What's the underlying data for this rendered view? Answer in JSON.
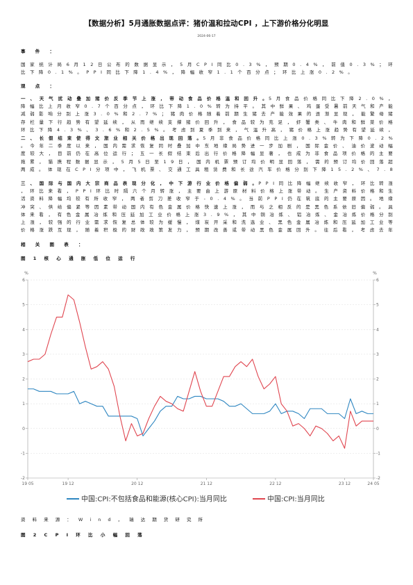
{
  "doc": {
    "title": "【数据分析】5月通胀数据点评：猪价温和拉动CPI ，上下游价格分化明显",
    "date": "2024-06-17",
    "event_heading": "事 件 ：",
    "event_text": "国 家 统 计 局 6 月 1 2 日 公 布 的 数 据 显 示 ， 5 月 C P I 同 比 0 . 3 % ， 预 期 0 . 4 % ， 前 值 0 . 3 % ； 环 比 下 降 0 . 1 % 。 P P I 同 比 下 降 1 . 4 % ， 降 幅 收 窄 1 . 1 个 百 分 点 ； 环 比 上 涨 0 . 2 % 。",
    "view_heading": "观 点 ：",
    "points": [
      {
        "head": "一 、 天 气 扰 动 叠 加 猪 价 反 季 节 上 涨 ， 带 动 食 品 价 格 温 和 回 升 。",
        "body": "5 月 食 品 价 格 同 比 下 降 2 . 0 % ， 降 幅 比 上 月 收 窄 0 . 7 个 百 分 点 ， 环 比 下 降 1 . 0 % 转 为 持 平 。 其 中 鲜 果 、 鸡 蛋 受 暑 前 天 气 和 产 能 减 弱 影 响 分 别 上 涨 3 . 0 % 和 2 . 7 % ； 猪 肉 价 格 随 着 前 期 生 猪 去 产 能 效 果 的 逐 渐 显 现 ， 能 繁 母 猪 存 栏 量 下 行 趋 势 有 望 延 续 ， 从 而 继 续 支 撑 猪 价 回 升 ， 食 品 较 为 充 足 ， 虾 蟹 类 、 牛 肉 和 鲜 菜 价 格 环 比 下 降 4 . 3 % 、 3 . 6 % 和 2 . 5 % 。 考 虑 到 夏 季 到 来 ， 气 温 升 高 ， 猪 价 格 上 涨 趋 势 有 望 延 续 ， 此 消 彼 长 下 整 体 食 品 项 价 格 同 比 增 速 大 概 率 低 位 运 行 ， 此 外 仍 需 注 意 天 气 因 素 的 扰 动 。"
      },
      {
        "head": "二 、 长 假 结 束 使 得 文 旅 业 相 关 价 格 出 现 回 落 。",
        "body": "5 月 非 食 品 价 格 同 比 上 涨 0 . 3 % 转 为 下 降 0 . 2 % 。 今 年 二 季 度 以 来 ， 国 内 需 求 恢 复 同 时 叠 加 中 东 地 缘 局 势 进 一 步 加 剧 ， 国 际 金 价 、 油 价 波 动 幅 度 较 大 ， 目 前 仍 在 高 位 运 行 ； 五 一 长 假 结 束 后 出 行 价 格 降 幅 显 著 ， 也 成 为 非 食 品 项 价 格 的 主 要 拖 累 ， 猫 携 程 数 据 显 示 ， 5 月 5 日 至 1 9 日 ， 国 内 机 票 预 订 均 价 明 显 回 落 ， 需 的 预 订 均 价 回 落 超 两 成 。 体 现 在 C P I 分 项 中 ， 飞 机 票 、 交 通 工 具 租 赁 费 和 长 途 汽 车 价 格 分 别 下 降 1 5 . 2 % 、 7 . 8 % 和 3 . 5 % ， 核 心 C P I 同 比 0 . 6 % 较 上 月 下 降 0 . 1 个 百 分 点 ， 说 明 内 需 不 足 的 问 题 依 旧 存 在 ， 旅 游 淡 季 到 来 使 得 居 民 消 费 热 情 进 一 步 回 落 ， 服 务 价 格 低 位 运 行 。"
      },
      {
        "head": "三 、 国 际 与 国 内 大 宗 商 品 表 现 分 化 ， 中 下 游 行 业 价 格 偏 弱 。",
        "body": "P P I 同 比 降 幅 继 续 收 窄 ， 环 比 转 涨 ， 环 比 来 看 ， P P I 环 比 时 隔 六 个 月 转 涨 ， 主 要 由 上 游 原 材 料 价 格 上 涨 带 动 。 生 产 资 料 价 格 和 生 活 资 料 降 幅 均 较 有 所 收 窄 ， 两 者 剪 刀 差 收 窄 于 - 0 . 4 % 。 当 前 P P I 仍 在 筑 底 的 主 要 原 因 。 地 缘 冲 突 、 供 给 偏 紧 等 因 素 带 动 国 内 有 色 金 属 价 格 快 速 上 涨 ， 而 与 之 相 反 的 是 黑 色 系 依 旧 偏 弱 。 具 体 来 看 ， 有 色 金 属 冶 炼 和 压 延 加 工 业 价 格 上 涨 3 . 9 % ， 其 中 铜 冶 炼 、 铝 冶 炼 、 金 冶 炼 价 格 分 别 上 涨 ， 较 强 的 行 业 需 求 恢 复 总 体 较 为 缓 慢 ， 煤 炭 开 采 和 洗 选 业 、 黑 色 金 属 冶 炼 和 压 延 加 工 业 等 价 格 涨 跌 互 现 ， 随 着 积 极 的 财 政 政 策 发 力 ， 预 期 改 善 或 带 动 黑 色 金 属 回 升 。 往 后 看 ， 考 虑 去 年 低 基 数 效 应 ， 二 季 度 P P I 同 比 有 望 回 到 正 增 长 状 态 的 时 点 还 将 主 要 取 决 于 国 内 地 产 市 场 走 向 及 各 项 稳 增 长 措 施 的 落 实 情 况 。 同 时 需 求 不 足 的 现 象 依 然 存 在 ， 中 下 游 行 业 或 难 受 成 本 压 力 。"
      }
    ],
    "related_heading": "相 关 图 表 ：",
    "fig1_title": "图   1   核 心 通 胀 低 位 运 行",
    "source": "资 料 来 源 ： W i n d ， 瑞 达 期 货 研 究 所",
    "fig2_title": "图   2   C P I 环 比 小 幅 回 落"
  },
  "colors": {
    "core_cpi": "#2e86c1",
    "cpi": "#e0454f",
    "grid": "#dcdcdc",
    "axis": "#999999"
  },
  "chart_data": {
    "type": "line",
    "ylabel_left": "%",
    "ylabel_right": "%",
    "ylim": [
      -2,
      6
    ],
    "yticks": [
      -2,
      -1,
      0,
      1,
      2,
      3,
      4,
      5,
      6
    ],
    "x_tick_labels": [
      "19 05",
      "19 12",
      "20 12",
      "21 12",
      "22 12",
      "23 12",
      "24 05"
    ],
    "x_tick_index": [
      0,
      7,
      19,
      31,
      43,
      55,
      60
    ],
    "series": [
      {
        "name": "中国:CPI:不包括食品和能源(核心CPI):当月同比",
        "color_key": "core_cpi",
        "values": [
          1.6,
          1.6,
          1.5,
          1.5,
          1.5,
          1.4,
          1.4,
          1.4,
          1.5,
          1.0,
          1.1,
          1.0,
          0.9,
          0.9,
          0.5,
          0.5,
          0.5,
          0.5,
          0.5,
          0.4,
          -0.3,
          0.0,
          0.3,
          0.7,
          0.9,
          0.9,
          1.3,
          1.2,
          1.2,
          1.3,
          1.3,
          1.2,
          1.2,
          1.2,
          1.1,
          0.9,
          0.9,
          1.0,
          0.8,
          0.6,
          0.6,
          0.6,
          0.7,
          1.0,
          0.6,
          0.7,
          0.7,
          0.6,
          0.4,
          0.8,
          0.8,
          0.8,
          0.6,
          0.6,
          0.6,
          0.4,
          1.2,
          0.6,
          0.7,
          0.6,
          0.6
        ]
      },
      {
        "name": "中国:CPI:当月同比",
        "color_key": "cpi",
        "values": [
          2.7,
          2.8,
          2.8,
          3.0,
          3.8,
          4.5,
          4.5,
          5.4,
          5.2,
          4.3,
          3.3,
          2.4,
          2.5,
          2.7,
          2.4,
          1.7,
          0.5,
          -0.5,
          0.2,
          -0.3,
          -0.2,
          0.4,
          0.9,
          1.3,
          1.1,
          1.0,
          0.8,
          0.7,
          1.5,
          2.3,
          1.5,
          0.9,
          0.9,
          1.5,
          2.1,
          2.1,
          2.5,
          2.7,
          2.5,
          2.8,
          2.1,
          1.6,
          1.8,
          2.1,
          1.0,
          0.7,
          0.1,
          0.2,
          0.0,
          -0.3,
          0.1,
          0.0,
          -0.2,
          -0.5,
          -0.3,
          -0.8,
          0.7,
          0.1,
          0.3,
          0.3,
          0.3
        ]
      }
    ],
    "legend_placement": "bottom",
    "grid": true
  }
}
